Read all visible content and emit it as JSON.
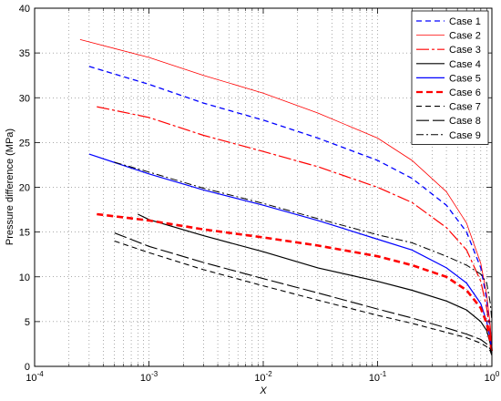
{
  "chart_data": {
    "type": "line",
    "title": "",
    "xlabel": "X",
    "ylabel": "Pressure difference (MPa)",
    "xscale": "log",
    "xlim": [
      0.0001,
      1
    ],
    "ylim": [
      0,
      40
    ],
    "xticks": [
      0.0001,
      0.001,
      0.01,
      0.1,
      1
    ],
    "xtick_labels": [
      {
        "base": "10",
        "exp": "-4"
      },
      {
        "base": "10",
        "exp": "-3"
      },
      {
        "base": "10",
        "exp": "-2"
      },
      {
        "base": "10",
        "exp": "-1"
      },
      {
        "base": "10",
        "exp": "0"
      }
    ],
    "yticks": [
      "0",
      "5",
      "10",
      "15",
      "20",
      "25",
      "30",
      "35",
      "40"
    ],
    "grid": true,
    "legend_position": "top-right",
    "series": [
      {
        "name": "Case 1",
        "color": "#0000ff",
        "dash": "dashed",
        "width": 1.3,
        "points": [
          [
            0.0003,
            33.5
          ],
          [
            0.001,
            31.5
          ],
          [
            0.003,
            29.4
          ],
          [
            0.01,
            27.5
          ],
          [
            0.03,
            25.5
          ],
          [
            0.1,
            23.0
          ],
          [
            0.2,
            21.0
          ],
          [
            0.4,
            18.0
          ],
          [
            0.6,
            15.0
          ],
          [
            0.8,
            11.0
          ],
          [
            0.9,
            7.5
          ],
          [
            0.97,
            4.0
          ],
          [
            1.0,
            2.0
          ]
        ]
      },
      {
        "name": "Case 2",
        "color": "#ff0000",
        "dash": "solid",
        "width": 0.8,
        "points": [
          [
            0.00025,
            36.5
          ],
          [
            0.001,
            34.5
          ],
          [
            0.003,
            32.5
          ],
          [
            0.01,
            30.5
          ],
          [
            0.03,
            28.3
          ],
          [
            0.1,
            25.5
          ],
          [
            0.2,
            23.0
          ],
          [
            0.4,
            19.5
          ],
          [
            0.6,
            16.0
          ],
          [
            0.8,
            11.5
          ],
          [
            0.9,
            8.0
          ],
          [
            0.97,
            4.5
          ],
          [
            1.0,
            2.0
          ]
        ]
      },
      {
        "name": "Case 3",
        "color": "#ff0000",
        "dash": "dashdot-long",
        "width": 1.2,
        "points": [
          [
            0.00035,
            29.0
          ],
          [
            0.001,
            27.8
          ],
          [
            0.003,
            25.8
          ],
          [
            0.01,
            24.0
          ],
          [
            0.03,
            22.3
          ],
          [
            0.1,
            20.0
          ],
          [
            0.2,
            18.3
          ],
          [
            0.4,
            15.5
          ],
          [
            0.6,
            13.0
          ],
          [
            0.8,
            9.5
          ],
          [
            0.9,
            6.5
          ],
          [
            0.97,
            3.5
          ],
          [
            1.0,
            1.8
          ]
        ]
      },
      {
        "name": "Case 4",
        "color": "#000000",
        "dash": "solid",
        "width": 1.2,
        "points": [
          [
            0.0008,
            17.0
          ],
          [
            0.001,
            16.4
          ],
          [
            0.003,
            14.6
          ],
          [
            0.01,
            12.8
          ],
          [
            0.03,
            11.0
          ],
          [
            0.1,
            9.5
          ],
          [
            0.2,
            8.5
          ],
          [
            0.4,
            7.3
          ],
          [
            0.6,
            6.3
          ],
          [
            0.8,
            5.0
          ],
          [
            0.9,
            4.0
          ],
          [
            0.97,
            2.5
          ],
          [
            1.0,
            1.5
          ]
        ]
      },
      {
        "name": "Case 5",
        "color": "#0000ff",
        "dash": "solid",
        "width": 1.2,
        "points": [
          [
            0.0003,
            23.7
          ],
          [
            0.001,
            21.5
          ],
          [
            0.003,
            19.7
          ],
          [
            0.01,
            18.0
          ],
          [
            0.03,
            16.3
          ],
          [
            0.1,
            14.2
          ],
          [
            0.2,
            13.0
          ],
          [
            0.4,
            11.0
          ],
          [
            0.6,
            9.3
          ],
          [
            0.8,
            7.0
          ],
          [
            0.9,
            5.0
          ],
          [
            0.97,
            3.0
          ],
          [
            1.0,
            1.6
          ]
        ]
      },
      {
        "name": "Case 6",
        "color": "#ff0000",
        "dash": "thickdash",
        "width": 2.6,
        "points": [
          [
            0.00035,
            17.0
          ],
          [
            0.001,
            16.3
          ],
          [
            0.003,
            15.3
          ],
          [
            0.01,
            14.4
          ],
          [
            0.03,
            13.5
          ],
          [
            0.1,
            12.3
          ],
          [
            0.2,
            11.3
          ],
          [
            0.4,
            10.0
          ],
          [
            0.6,
            8.5
          ],
          [
            0.8,
            6.5
          ],
          [
            0.9,
            4.8
          ],
          [
            0.97,
            2.8
          ],
          [
            1.0,
            1.5
          ]
        ]
      },
      {
        "name": "Case 7",
        "color": "#000000",
        "dash": "dashed",
        "width": 1.1,
        "points": [
          [
            0.0005,
            14.0
          ],
          [
            0.001,
            12.7
          ],
          [
            0.003,
            10.8
          ],
          [
            0.01,
            9.0
          ],
          [
            0.03,
            7.4
          ],
          [
            0.1,
            5.7
          ],
          [
            0.2,
            4.8
          ],
          [
            0.4,
            3.8
          ],
          [
            0.6,
            3.2
          ],
          [
            0.8,
            2.6
          ],
          [
            0.9,
            2.2
          ],
          [
            0.97,
            1.7
          ],
          [
            1.0,
            1.2
          ]
        ]
      },
      {
        "name": "Case 8",
        "color": "#000000",
        "dash": "longdash",
        "width": 1.1,
        "points": [
          [
            0.0005,
            14.9
          ],
          [
            0.001,
            13.4
          ],
          [
            0.003,
            11.6
          ],
          [
            0.01,
            9.8
          ],
          [
            0.03,
            8.2
          ],
          [
            0.1,
            6.4
          ],
          [
            0.2,
            5.4
          ],
          [
            0.4,
            4.3
          ],
          [
            0.6,
            3.6
          ],
          [
            0.8,
            3.0
          ],
          [
            0.9,
            2.5
          ],
          [
            0.97,
            1.9
          ],
          [
            1.0,
            1.3
          ]
        ]
      },
      {
        "name": "Case 9",
        "color": "#000000",
        "dash": "dashdot",
        "width": 1.0,
        "points": [
          [
            0.0005,
            22.8
          ],
          [
            0.001,
            21.7
          ],
          [
            0.003,
            19.9
          ],
          [
            0.01,
            18.2
          ],
          [
            0.03,
            16.5
          ],
          [
            0.1,
            14.7
          ],
          [
            0.2,
            13.8
          ],
          [
            0.4,
            12.3
          ],
          [
            0.6,
            11.3
          ],
          [
            0.8,
            10.3
          ],
          [
            0.9,
            9.3
          ],
          [
            0.97,
            7.0
          ],
          [
            1.0,
            5.0
          ]
        ]
      }
    ]
  }
}
